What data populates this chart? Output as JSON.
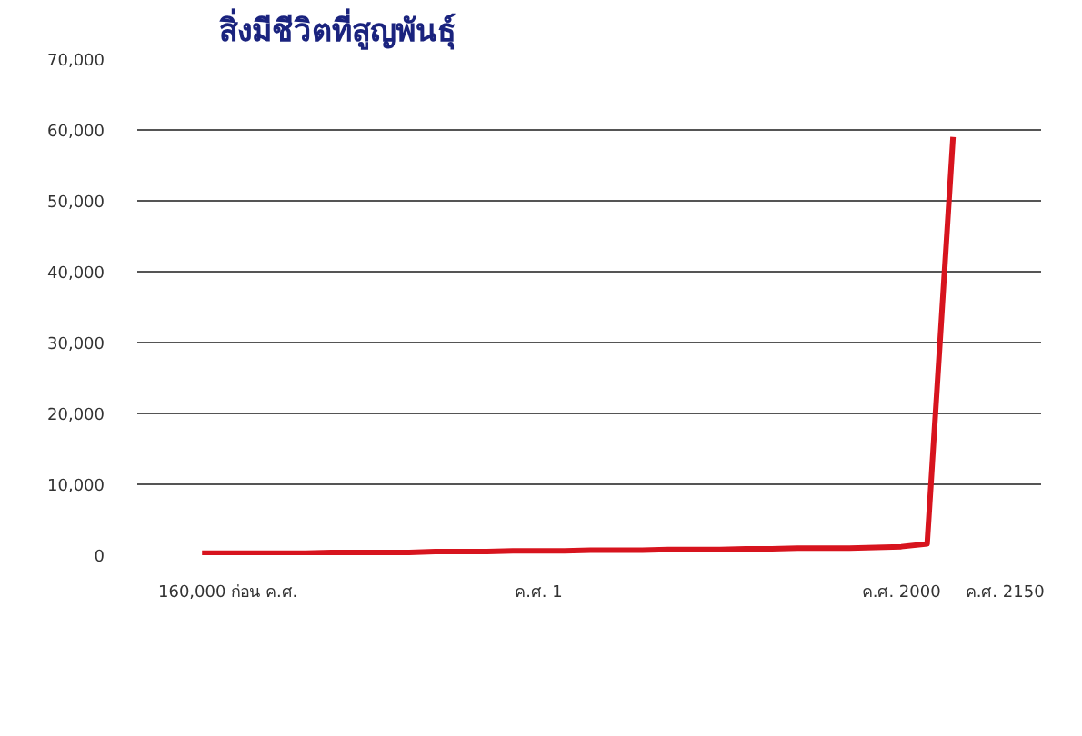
{
  "chart_data": {
    "type": "line",
    "title": "สิ่งมีชีวิตที่สูญพันธุ์",
    "categories": [
      null,
      "160,000 ก่อน ค.ศ.",
      null,
      null,
      null,
      null,
      null,
      null,
      null,
      null,
      null,
      null,
      null,
      "ค.ศ. 1",
      null,
      null,
      null,
      null,
      null,
      null,
      null,
      null,
      null,
      null,
      null,
      null,
      null,
      "ค.ศ. 2000",
      null,
      null,
      null,
      "ค.ศ. 2150"
    ],
    "series": [
      {
        "color": "#d7141e",
        "values": [
          300,
          300,
          300,
          300,
          300,
          400,
          400,
          400,
          400,
          500,
          500,
          500,
          600,
          600,
          600,
          700,
          700,
          700,
          800,
          800,
          800,
          900,
          900,
          1000,
          1000,
          1000,
          1100,
          1200,
          1600,
          59000,
          null,
          null
        ]
      }
    ],
    "ylim": [
      0,
      70000
    ],
    "yticks": [
      {
        "value": 0,
        "label": "0"
      },
      {
        "value": 10000,
        "label": "10,000"
      },
      {
        "value": 20000,
        "label": "20,000"
      },
      {
        "value": 30000,
        "label": "30,000"
      },
      {
        "value": 40000,
        "label": "40,000"
      },
      {
        "value": 50000,
        "label": "50,000"
      },
      {
        "value": 60000,
        "label": "60,000"
      },
      {
        "value": 70000,
        "label": "70,000"
      }
    ],
    "grid": "y",
    "marker": "none",
    "line_style": "solid"
  }
}
